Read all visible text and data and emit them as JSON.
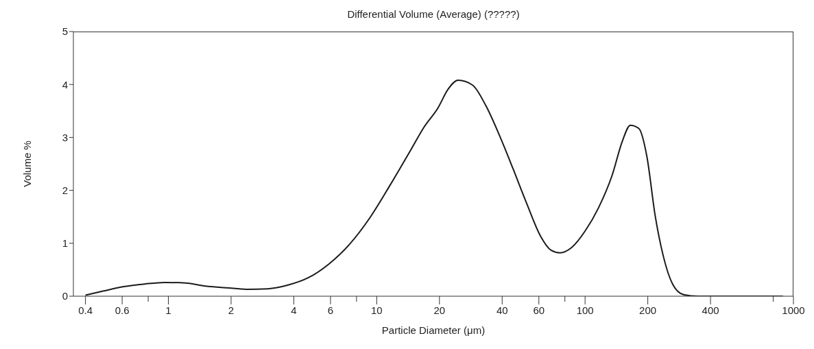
{
  "chart_data": {
    "type": "line",
    "title": "Differential Volume (Average) (?????)",
    "xlabel": "Particle Diameter (μm)",
    "ylabel": "Volume %",
    "log": "x",
    "xlim": [
      0.35,
      1000
    ],
    "xticks": [
      0.4,
      0.6,
      {
        "value": 0.8,
        "label": null
      },
      1,
      2,
      4,
      6,
      {
        "value": 8,
        "label": null
      },
      10,
      20,
      40,
      60,
      {
        "value": 80,
        "label": null
      },
      100,
      200,
      400,
      {
        "value": 800,
        "label": null
      },
      1000
    ],
    "ylim": [
      0,
      5
    ],
    "yticks": [
      0,
      1,
      2,
      3,
      4,
      5
    ],
    "grid": false,
    "legend": false,
    "marker": "none",
    "line_style": "solid",
    "series": [
      {
        "color": "#1a1a1a",
        "x": [
          0.4,
          0.49,
          0.61,
          0.77,
          0.96,
          1.21,
          1.51,
          1.9,
          2.38,
          3.0,
          3.75,
          4.7,
          5.9,
          7.4,
          9.3,
          11.6,
          14.6,
          16.9,
          19.7,
          22,
          24.6,
          28.8,
          33.4,
          38.9,
          45.2,
          52.6,
          61.2,
          68.6,
          75.8,
          86.2,
          100,
          116,
          135,
          151,
          165,
          181,
          198,
          217,
          238,
          263,
          297,
          348,
          500,
          890
        ],
        "values": [
          0.02,
          0.1,
          0.18,
          0.23,
          0.26,
          0.25,
          0.19,
          0.16,
          0.13,
          0.14,
          0.21,
          0.35,
          0.61,
          0.98,
          1.49,
          2.1,
          2.77,
          3.2,
          3.56,
          3.91,
          4.08,
          3.99,
          3.6,
          3.03,
          2.4,
          1.74,
          1.13,
          0.87,
          0.82,
          0.92,
          1.23,
          1.67,
          2.29,
          2.93,
          3.23,
          3.17,
          2.64,
          1.52,
          0.74,
          0.23,
          0.03,
          0,
          0,
          0
        ]
      }
    ]
  }
}
